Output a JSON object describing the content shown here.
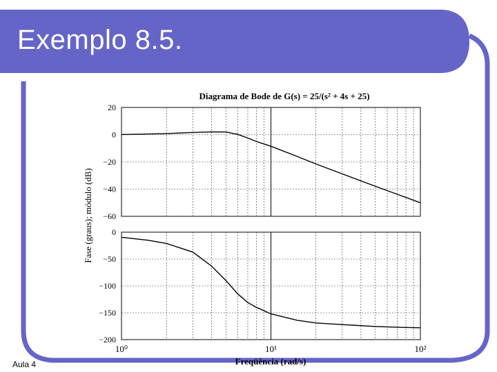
{
  "slide": {
    "title": "Exemplo 8.5.",
    "footer": "Aula 4",
    "colors": {
      "title_bar": "#6565c8",
      "frame_border": "#6565c8",
      "text": "#000000"
    }
  },
  "chart_data": [
    {
      "type": "line",
      "title": "Diagrama de Bode de G(s) = 25/(s² + 4s + 25)",
      "ylabel": "Fase (graus); módulo (dB)",
      "xscale": "log",
      "xlim": [
        1,
        100
      ],
      "ylim": [
        -60,
        20
      ],
      "yticks": [
        "20",
        "0",
        "−20",
        "−40",
        "−60"
      ],
      "grid": true,
      "series": [
        {
          "name": "",
          "x": [
            1,
            2,
            3,
            4,
            5,
            6,
            7,
            8,
            10,
            15,
            20,
            30,
            50,
            70,
            100
          ],
          "y": [
            0.1,
            0.8,
            1.6,
            2.1,
            2.0,
            0.2,
            -2.5,
            -5.0,
            -8.5,
            -16.0,
            -21.5,
            -28.8,
            -37.9,
            -43.8,
            -50.0
          ]
        }
      ]
    },
    {
      "type": "line",
      "xlabel": "Freqüência (rad/s)",
      "xscale": "log",
      "xlim": [
        1,
        100
      ],
      "ylim": [
        -200,
        0
      ],
      "xticks": [
        "10⁰",
        "10¹",
        "10²"
      ],
      "yticks": [
        "0",
        "−50",
        "−100",
        "−150",
        "−200"
      ],
      "grid": true,
      "series": [
        {
          "name": "",
          "x": [
            1,
            1.5,
            2,
            3,
            4,
            5,
            6,
            7,
            8,
            10,
            15,
            20,
            30,
            50,
            70,
            100
          ],
          "y": [
            -9.5,
            -15,
            -21,
            -37,
            -63,
            -90,
            -115,
            -131,
            -140,
            -152,
            -164,
            -169,
            -172,
            -175.5,
            -177,
            -178
          ]
        }
      ]
    }
  ]
}
